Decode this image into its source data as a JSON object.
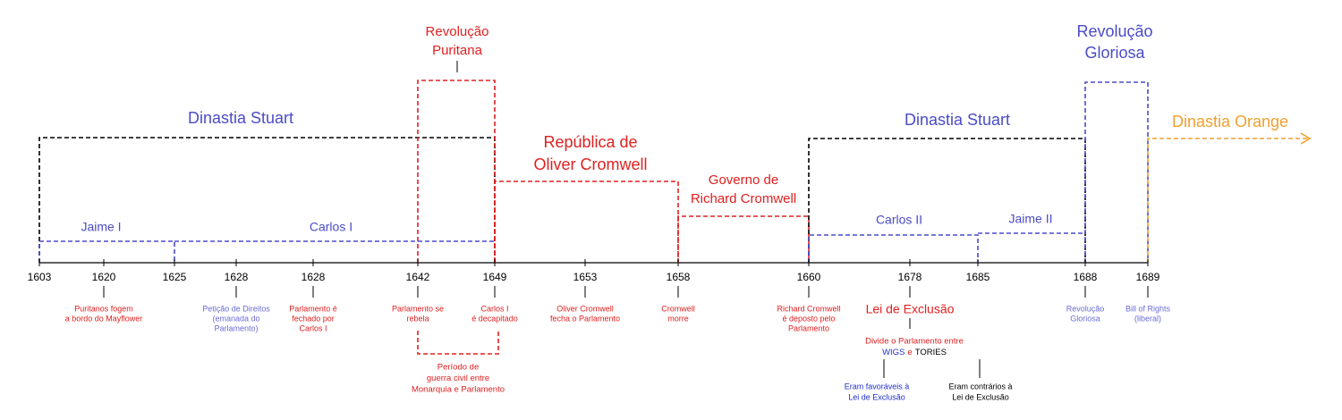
{
  "periods": {
    "stuart_1": "Dinastia Stuart",
    "puritan_revolution": [
      "Revolução",
      "Puritana"
    ],
    "republic": [
      "República de",
      "Oliver Cromwell"
    ],
    "richard": [
      "Governo de",
      "Richard Cromwell"
    ],
    "stuart_2": "Dinastia Stuart",
    "glorious_revolution": [
      "Revolução",
      "Gloriosa"
    ],
    "orange": "Dinastia Orange"
  },
  "reigns": [
    "Jaime I",
    "Carlos I",
    "Carlos II",
    "Jaime II"
  ],
  "years": [
    "1603",
    "1620",
    "1625",
    "1628",
    "1628",
    "1642",
    "1649",
    "1653",
    "1658",
    "1660",
    "1678",
    "1685",
    "1688",
    "1689"
  ],
  "events": [
    {
      "year": "1620",
      "lines": [
        "Puritanos fogem",
        "a bordo do Mayflower"
      ]
    },
    {
      "year": "1628",
      "lines": [
        "Petição de Direitos",
        "(emanada do",
        "Parlamento)"
      ]
    },
    {
      "year": "1628",
      "lines": [
        "Parlamento é",
        "fechado por",
        "Carlos I"
      ]
    },
    {
      "year": "1642",
      "lines": [
        "Parlamento se",
        "rebela"
      ]
    },
    {
      "year": "1649",
      "lines": [
        "Carlos I",
        "é decapitado"
      ]
    },
    {
      "year": "1653",
      "lines": [
        "Oliver Cromwell",
        "fecha o Parlamento"
      ]
    },
    {
      "year": "1658",
      "lines": [
        "Cromwell",
        "morre"
      ]
    },
    {
      "year": "1660",
      "lines": [
        "Richard Cromwell",
        "é deposto pelo",
        "Parlamento"
      ]
    },
    {
      "year": "1678",
      "lines": [
        "Lei de Exclusão"
      ]
    },
    {
      "year": "1688",
      "lines": [
        "Revolução",
        "Gloriosa"
      ]
    },
    {
      "year": "1689",
      "lines": [
        "Bill of Rights",
        "(liberal)"
      ]
    }
  ],
  "civil_war": [
    "Período de",
    "guerra civil entre",
    "Monarquia e Parlamento"
  ],
  "division": {
    "intro": "Divide o Parlamento entre",
    "wigs": "WIGS",
    "and": "e",
    "tories": "TORIES",
    "favor": [
      "Eram favoráveis à",
      "Lei de Exclusão"
    ],
    "against": [
      "Eram contrários à",
      "Lei de Exclusão"
    ]
  }
}
